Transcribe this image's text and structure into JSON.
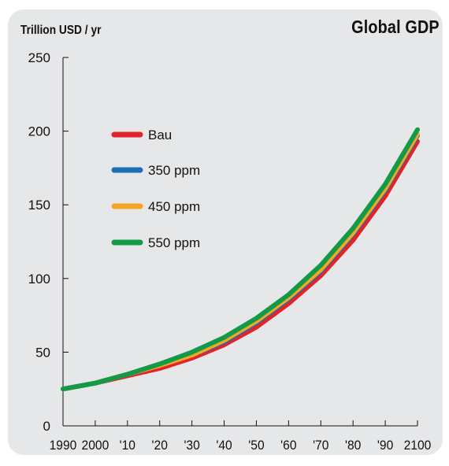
{
  "chart_data": {
    "type": "line",
    "title": "Global GDP",
    "ylabel": "Trillion USD / yr",
    "xlabel": "",
    "x": [
      1990,
      2000,
      2010,
      2020,
      2030,
      2040,
      2050,
      2060,
      2070,
      2080,
      2090,
      2100
    ],
    "x_tick_labels": [
      "1990",
      "2000",
      "'10",
      "'20",
      "'30",
      "'40",
      "'50",
      "'60",
      "'70",
      "'80",
      "'90",
      "2100"
    ],
    "y_ticks": [
      0,
      50,
      100,
      150,
      200,
      250
    ],
    "ylim": [
      0,
      250
    ],
    "xlim": [
      1990,
      2100
    ],
    "grid": false,
    "legend_position": "upper-left",
    "series": [
      {
        "name": "Bau",
        "color": "#e2232a",
        "values": [
          25,
          29,
          34,
          39,
          46,
          55,
          67,
          83,
          102,
          126,
          156,
          193
        ]
      },
      {
        "name": "350 ppm",
        "color": "#1b6fb5",
        "values": [
          25,
          29,
          35,
          41,
          48,
          57,
          70,
          86,
          105,
          130,
          160,
          197
        ]
      },
      {
        "name": "450 ppm",
        "color": "#f5a623",
        "values": [
          25,
          29,
          35,
          41,
          48,
          58,
          71,
          87,
          106,
          131,
          161,
          198
        ]
      },
      {
        "name": "550 ppm",
        "color": "#139a48",
        "values": [
          25,
          29,
          35,
          42,
          50,
          60,
          73,
          89,
          109,
          134,
          164,
          201
        ]
      }
    ]
  }
}
